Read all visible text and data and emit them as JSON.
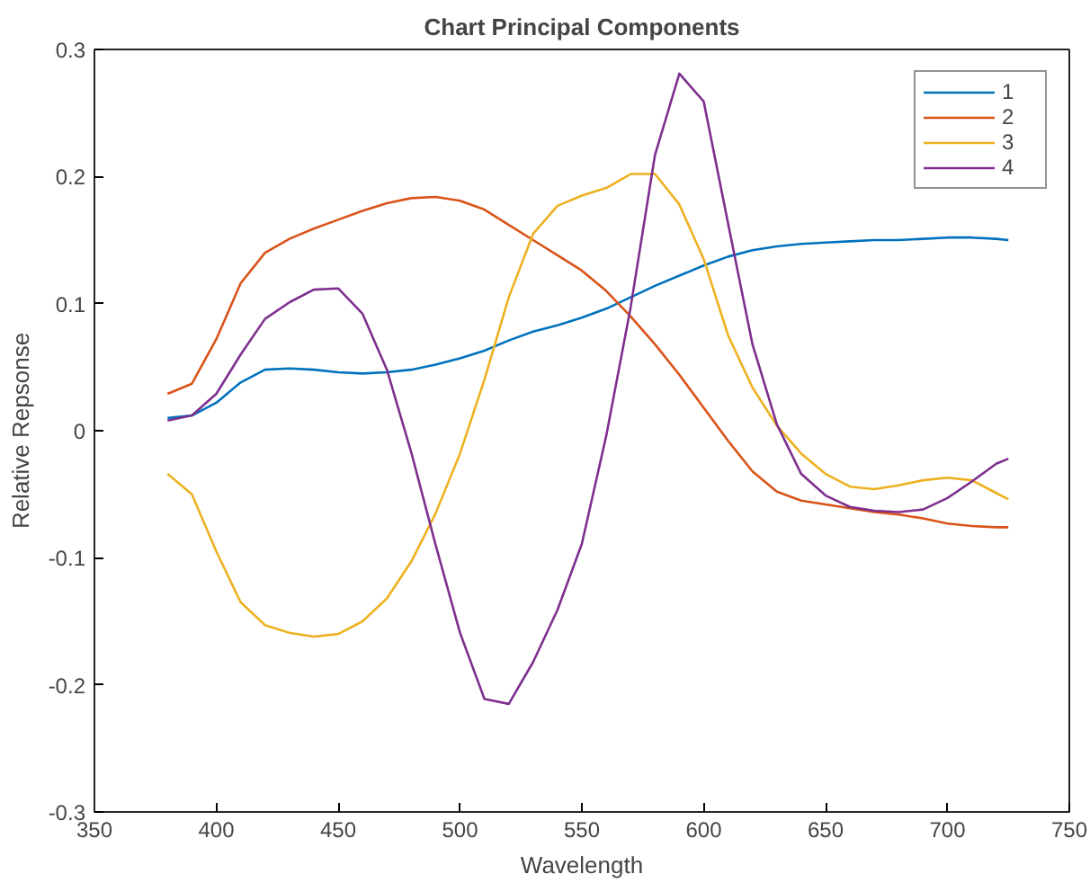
{
  "chart_data": {
    "type": "line",
    "title": "Chart Principal Components",
    "xlabel": "Wavelength",
    "ylabel": "Relative Repsonse",
    "x": [
      380,
      390,
      400,
      410,
      420,
      430,
      440,
      450,
      460,
      470,
      480,
      490,
      500,
      510,
      520,
      530,
      540,
      550,
      560,
      570,
      580,
      590,
      600,
      610,
      620,
      630,
      640,
      650,
      660,
      670,
      680,
      690,
      700,
      710,
      720,
      725
    ],
    "series": [
      {
        "name": "1",
        "color": "#0072bd",
        "values": [
          0.01,
          0.012,
          0.022,
          0.038,
          0.048,
          0.049,
          0.048,
          0.046,
          0.045,
          0.046,
          0.048,
          0.052,
          0.057,
          0.063,
          0.071,
          0.078,
          0.083,
          0.089,
          0.096,
          0.105,
          0.114,
          0.122,
          0.13,
          0.137,
          0.142,
          0.145,
          0.147,
          0.148,
          0.149,
          0.15,
          0.15,
          0.151,
          0.152,
          0.152,
          0.151,
          0.15
        ]
      },
      {
        "name": "2",
        "color": "#d95319",
        "values": [
          0.029,
          0.037,
          0.072,
          0.116,
          0.14,
          0.151,
          0.159,
          0.166,
          0.173,
          0.179,
          0.183,
          0.184,
          0.181,
          0.174,
          0.162,
          0.15,
          0.138,
          0.126,
          0.11,
          0.09,
          0.068,
          0.044,
          0.018,
          -0.008,
          -0.032,
          -0.048,
          -0.055,
          -0.058,
          -0.061,
          -0.064,
          -0.066,
          -0.069,
          -0.073,
          -0.075,
          -0.076,
          -0.076
        ]
      },
      {
        "name": "3",
        "color": "#edb120",
        "values": [
          -0.034,
          -0.05,
          -0.095,
          -0.135,
          -0.153,
          -0.159,
          -0.162,
          -0.16,
          -0.15,
          -0.132,
          -0.103,
          -0.065,
          -0.018,
          0.04,
          0.105,
          0.155,
          0.177,
          0.185,
          0.191,
          0.202,
          0.202,
          0.178,
          0.135,
          0.075,
          0.034,
          0.004,
          -0.018,
          -0.034,
          -0.044,
          -0.046,
          -0.043,
          -0.039,
          -0.037,
          -0.039,
          -0.049,
          -0.054
        ]
      },
      {
        "name": "4",
        "color": "#7e2f8e",
        "values": [
          0.008,
          0.012,
          0.029,
          0.06,
          0.088,
          0.101,
          0.111,
          0.112,
          0.092,
          0.048,
          -0.017,
          -0.09,
          -0.159,
          -0.211,
          -0.215,
          -0.182,
          -0.141,
          -0.089,
          -0.004,
          0.097,
          0.217,
          0.281,
          0.259,
          0.163,
          0.068,
          0.005,
          -0.034,
          -0.051,
          -0.06,
          -0.063,
          -0.064,
          -0.062,
          -0.053,
          -0.04,
          -0.026,
          -0.022
        ]
      }
    ],
    "xlim": [
      350,
      750
    ],
    "xticks": [
      350,
      400,
      450,
      500,
      550,
      600,
      650,
      700,
      750
    ],
    "ylim": [
      -0.3,
      0.3
    ],
    "yticks": [
      -0.3,
      -0.2,
      -0.1,
      0,
      0.1,
      0.2,
      0.3
    ],
    "grid": false,
    "legend": "top right",
    "line_style": "solid"
  }
}
